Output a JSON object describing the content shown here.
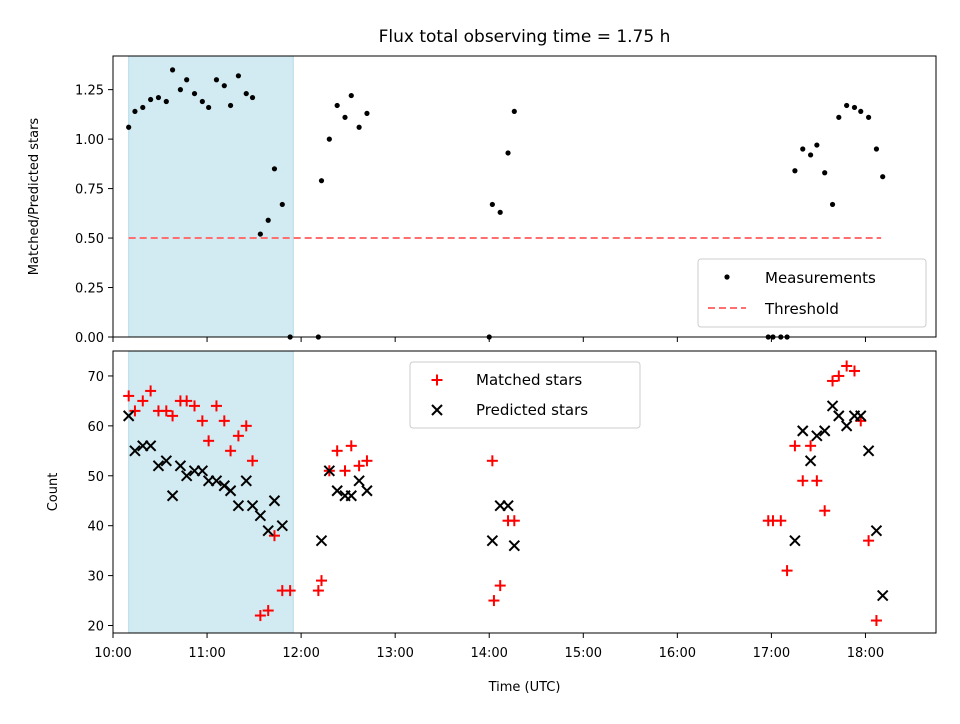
{
  "chart_data": [
    {
      "type": "scatter",
      "title": "Flux total observing time = 1.75 h",
      "xlabel": "",
      "ylabel": "Matched/Predicted stars",
      "xlim": [
        "10:00",
        "18:45"
      ],
      "ylim": [
        0,
        1.42
      ],
      "yticks": [
        0.0,
        0.25,
        0.5,
        0.75,
        1.0,
        1.25
      ],
      "ytick_labels": [
        "0.00",
        "0.25",
        "0.50",
        "0.75",
        "1.00",
        "1.25"
      ],
      "shaded_band": {
        "x_start": "10:10",
        "x_end": "11:55",
        "color": "#add8e6"
      },
      "legend": {
        "placement": "lower right",
        "entries": [
          "Measurements",
          "Threshold"
        ]
      },
      "series": [
        {
          "name": "Measurements",
          "marker": "dot",
          "color": "#000000",
          "points": [
            [
              "10:10",
              1.06
            ],
            [
              "10:14",
              1.14
            ],
            [
              "10:19",
              1.16
            ],
            [
              "10:24",
              1.2
            ],
            [
              "10:29",
              1.21
            ],
            [
              "10:34",
              1.19
            ],
            [
              "10:38",
              1.35
            ],
            [
              "10:43",
              1.25
            ],
            [
              "10:47",
              1.3
            ],
            [
              "10:52",
              1.23
            ],
            [
              "10:57",
              1.19
            ],
            [
              "11:01",
              1.16
            ],
            [
              "11:06",
              1.3
            ],
            [
              "11:11",
              1.27
            ],
            [
              "11:15",
              1.17
            ],
            [
              "11:20",
              1.32
            ],
            [
              "11:25",
              1.23
            ],
            [
              "11:29",
              1.21
            ],
            [
              "11:34",
              0.52
            ],
            [
              "11:39",
              0.59
            ],
            [
              "11:43",
              0.85
            ],
            [
              "11:48",
              0.67
            ],
            [
              "11:53",
              0.0
            ],
            [
              "12:11",
              0.0
            ],
            [
              "12:13",
              0.79
            ],
            [
              "12:18",
              1.0
            ],
            [
              "12:23",
              1.17
            ],
            [
              "12:28",
              1.11
            ],
            [
              "12:32",
              1.22
            ],
            [
              "12:37",
              1.06
            ],
            [
              "12:42",
              1.13
            ],
            [
              "14:00",
              0.0
            ],
            [
              "14:02",
              0.67
            ],
            [
              "14:07",
              0.63
            ],
            [
              "14:12",
              0.93
            ],
            [
              "14:16",
              1.14
            ],
            [
              "16:58",
              0.0
            ],
            [
              "17:01",
              0.0
            ],
            [
              "17:06",
              0.0
            ],
            [
              "17:10",
              0.0
            ],
            [
              "17:15",
              0.84
            ],
            [
              "17:20",
              0.95
            ],
            [
              "17:25",
              0.92
            ],
            [
              "17:29",
              0.97
            ],
            [
              "17:34",
              0.83
            ],
            [
              "17:39",
              0.67
            ],
            [
              "17:43",
              1.11
            ],
            [
              "17:48",
              1.17
            ],
            [
              "17:53",
              1.16
            ],
            [
              "17:57",
              1.14
            ],
            [
              "18:02",
              1.11
            ],
            [
              "18:07",
              0.95
            ],
            [
              "18:11",
              0.81
            ]
          ]
        },
        {
          "name": "Threshold",
          "style": "dashed",
          "color": "#ff6f6f",
          "points": [
            [
              "10:10",
              0.5
            ],
            [
              "18:10",
              0.5
            ]
          ]
        }
      ]
    },
    {
      "type": "scatter",
      "title": "",
      "xlabel": "Time (UTC)",
      "ylabel": "Count",
      "xlim": [
        "10:00",
        "18:45"
      ],
      "ylim": [
        18.5,
        75
      ],
      "yticks": [
        20,
        30,
        40,
        50,
        60,
        70
      ],
      "ytick_labels": [
        "20",
        "30",
        "40",
        "50",
        "60",
        "70"
      ],
      "xticks": [
        "10:00",
        "11:00",
        "12:00",
        "13:00",
        "14:00",
        "15:00",
        "16:00",
        "17:00",
        "18:00"
      ],
      "xtick_labels": [
        "10:00",
        "11:00",
        "12:00",
        "13:00",
        "14:00",
        "15:00",
        "16:00",
        "17:00",
        "18:00"
      ],
      "shaded_band": {
        "x_start": "10:10",
        "x_end": "11:55",
        "color": "#add8e6"
      },
      "legend": {
        "placement": "upper center",
        "entries": [
          "Matched stars",
          "Predicted stars"
        ]
      },
      "series": [
        {
          "name": "Matched stars",
          "marker": "plus",
          "color": "#ff0000",
          "points": [
            [
              "10:10",
              66
            ],
            [
              "10:14",
              63
            ],
            [
              "10:19",
              65
            ],
            [
              "10:24",
              67
            ],
            [
              "10:29",
              63
            ],
            [
              "10:34",
              63
            ],
            [
              "10:38",
              62
            ],
            [
              "10:43",
              65
            ],
            [
              "10:47",
              65
            ],
            [
              "10:52",
              64
            ],
            [
              "10:57",
              61
            ],
            [
              "11:01",
              57
            ],
            [
              "11:06",
              64
            ],
            [
              "11:11",
              61
            ],
            [
              "11:15",
              55
            ],
            [
              "11:20",
              58
            ],
            [
              "11:25",
              60
            ],
            [
              "11:29",
              53
            ],
            [
              "11:34",
              22
            ],
            [
              "11:39",
              23
            ],
            [
              "11:43",
              38
            ],
            [
              "11:48",
              27
            ],
            [
              "11:53",
              27
            ],
            [
              "12:11",
              27
            ],
            [
              "12:13",
              29
            ],
            [
              "12:18",
              51
            ],
            [
              "12:23",
              55
            ],
            [
              "12:28",
              51
            ],
            [
              "12:32",
              56
            ],
            [
              "12:37",
              52
            ],
            [
              "12:42",
              53
            ],
            [
              "14:02",
              53
            ],
            [
              "14:03",
              25
            ],
            [
              "14:07",
              28
            ],
            [
              "14:12",
              41
            ],
            [
              "14:16",
              41
            ],
            [
              "16:58",
              41
            ],
            [
              "17:01",
              41
            ],
            [
              "17:06",
              41
            ],
            [
              "17:10",
              31
            ],
            [
              "17:15",
              56
            ],
            [
              "17:20",
              49
            ],
            [
              "17:25",
              56
            ],
            [
              "17:29",
              49
            ],
            [
              "17:34",
              43
            ],
            [
              "17:39",
              69
            ],
            [
              "17:43",
              70
            ],
            [
              "17:48",
              72
            ],
            [
              "17:53",
              71
            ],
            [
              "17:57",
              61
            ],
            [
              "18:02",
              37
            ],
            [
              "18:07",
              21
            ]
          ]
        },
        {
          "name": "Predicted stars",
          "marker": "cross",
          "color": "#000000",
          "points": [
            [
              "10:10",
              62
            ],
            [
              "10:14",
              55
            ],
            [
              "10:19",
              56
            ],
            [
              "10:24",
              56
            ],
            [
              "10:29",
              52
            ],
            [
              "10:34",
              53
            ],
            [
              "10:38",
              46
            ],
            [
              "10:43",
              52
            ],
            [
              "10:47",
              50
            ],
            [
              "10:52",
              51
            ],
            [
              "10:57",
              51
            ],
            [
              "11:01",
              49
            ],
            [
              "11:06",
              49
            ],
            [
              "11:11",
              48
            ],
            [
              "11:15",
              47
            ],
            [
              "11:20",
              44
            ],
            [
              "11:25",
              49
            ],
            [
              "11:29",
              44
            ],
            [
              "11:34",
              42
            ],
            [
              "11:39",
              39
            ],
            [
              "11:43",
              45
            ],
            [
              "11:48",
              40
            ],
            [
              "12:13",
              37
            ],
            [
              "12:18",
              51
            ],
            [
              "12:23",
              47
            ],
            [
              "12:28",
              46
            ],
            [
              "12:32",
              46
            ],
            [
              "12:37",
              49
            ],
            [
              "12:42",
              47
            ],
            [
              "14:02",
              37
            ],
            [
              "14:07",
              44
            ],
            [
              "14:12",
              44
            ],
            [
              "14:16",
              36
            ],
            [
              "17:15",
              37
            ],
            [
              "17:20",
              59
            ],
            [
              "17:25",
              53
            ],
            [
              "17:29",
              58
            ],
            [
              "17:34",
              59
            ],
            [
              "17:39",
              64
            ],
            [
              "17:43",
              62
            ],
            [
              "17:48",
              60
            ],
            [
              "17:53",
              62
            ],
            [
              "17:57",
              62
            ],
            [
              "18:02",
              55
            ],
            [
              "18:07",
              39
            ],
            [
              "18:11",
              26
            ]
          ]
        }
      ]
    }
  ]
}
